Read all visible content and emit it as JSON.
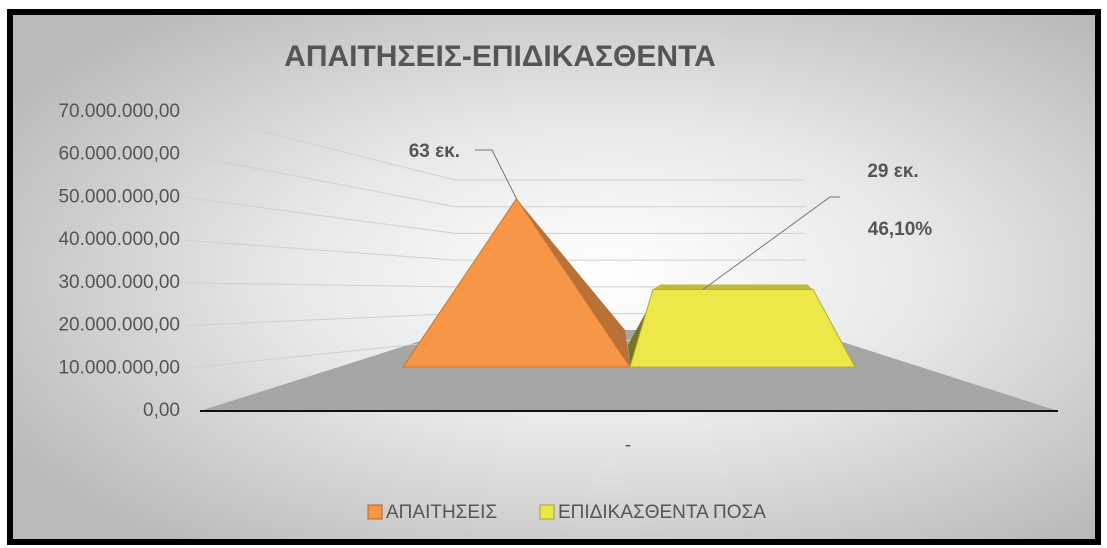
{
  "chart_data": {
    "type": "pyramid3d",
    "title": "ΑΠΑΙΤΗΣΕΙΣ-ΕΠΙΔΙΚΑΣΘΕΝΤΑ",
    "categories": [
      "-"
    ],
    "series": [
      {
        "name": "ΑΠΑΙΤΗΣΕΙΣ",
        "color": "#f79646",
        "values": [
          63000000
        ],
        "value_labels": [
          "63 εκ."
        ]
      },
      {
        "name": "ΕΠΙΔΙΚΑΣΘΕΝΤΑ ΠΟΣΑ",
        "color": "#ede84a",
        "values": [
          29000000
        ],
        "value_labels": [
          "29 εκ."
        ]
      }
    ],
    "annotations": [
      "46,10%"
    ],
    "ylim": [
      0,
      70000000
    ],
    "yticks": [
      {
        "value": 0,
        "label": "0,00"
      },
      {
        "value": 10000000,
        "label": "10.000.000,00"
      },
      {
        "value": 20000000,
        "label": "20.000.000,00"
      },
      {
        "value": 30000000,
        "label": "30.000.000,00"
      },
      {
        "value": 40000000,
        "label": "40.000.000,00"
      },
      {
        "value": 50000000,
        "label": "50.000.000,00"
      },
      {
        "value": 60000000,
        "label": "60.000.000,00"
      },
      {
        "value": 70000000,
        "label": "70.000.000,00"
      }
    ],
    "grid": true,
    "legend": "bottom"
  }
}
